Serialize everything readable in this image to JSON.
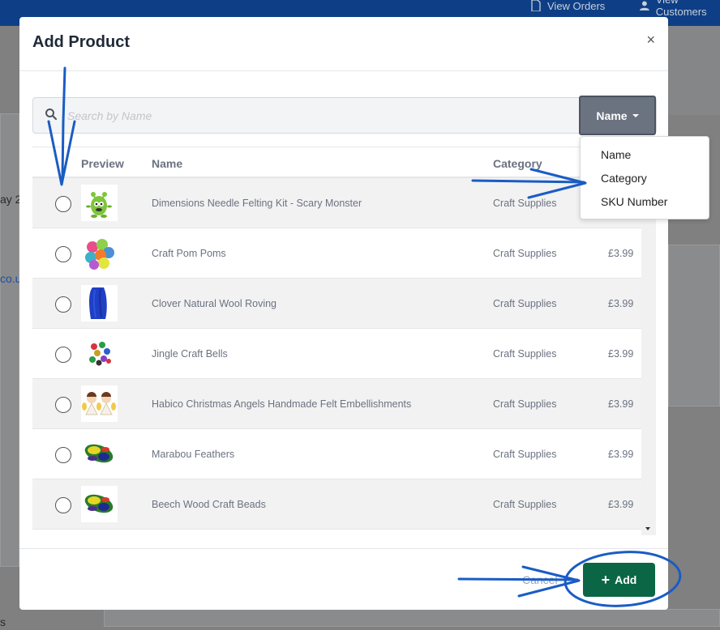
{
  "background": {
    "nav_orders": "View Orders",
    "nav_customers": "View Customers",
    "left_text_1": "ay 2",
    "left_text_2": "co.u",
    "left_text_3": "s"
  },
  "modal": {
    "title": "Add Product",
    "close": "×"
  },
  "search": {
    "placeholder": "Search by Name",
    "value": "",
    "filter_label": "Name"
  },
  "filter_menu": {
    "items": [
      "Name",
      "Category",
      "SKU Number"
    ]
  },
  "table": {
    "headers": {
      "preview": "Preview",
      "name": "Name",
      "category": "Category"
    },
    "rows": [
      {
        "name": "Dimensions Needle Felting Kit - Scary Monster",
        "category": "Craft Supplies",
        "price": "",
        "thumb": "green-monster"
      },
      {
        "name": "Craft Pom Poms",
        "category": "Craft Supplies",
        "price": "£3.99",
        "thumb": "pom-poms"
      },
      {
        "name": "Clover Natural Wool Roving",
        "category": "Craft Supplies",
        "price": "£3.99",
        "thumb": "blue-wool"
      },
      {
        "name": "Jingle Craft Bells",
        "category": "Craft Supplies",
        "price": "£3.99",
        "thumb": "bells"
      },
      {
        "name": "Habico Christmas Angels Handmade Felt Embellishments",
        "category": "Craft Supplies",
        "price": "£3.99",
        "thumb": "angels"
      },
      {
        "name": "Marabou Feathers",
        "category": "Craft Supplies",
        "price": "£3.99",
        "thumb": "feathers"
      },
      {
        "name": "Beech Wood Craft Beads",
        "category": "Craft Supplies",
        "price": "£3.99",
        "thumb": "feathers"
      }
    ]
  },
  "footer": {
    "cancel_label": "Cancel",
    "add_label": "Add",
    "add_icon": "+"
  },
  "colors": {
    "add_button": "#0b6645",
    "filter_button": "#6b7280",
    "annotation": "#1a5cc4"
  }
}
